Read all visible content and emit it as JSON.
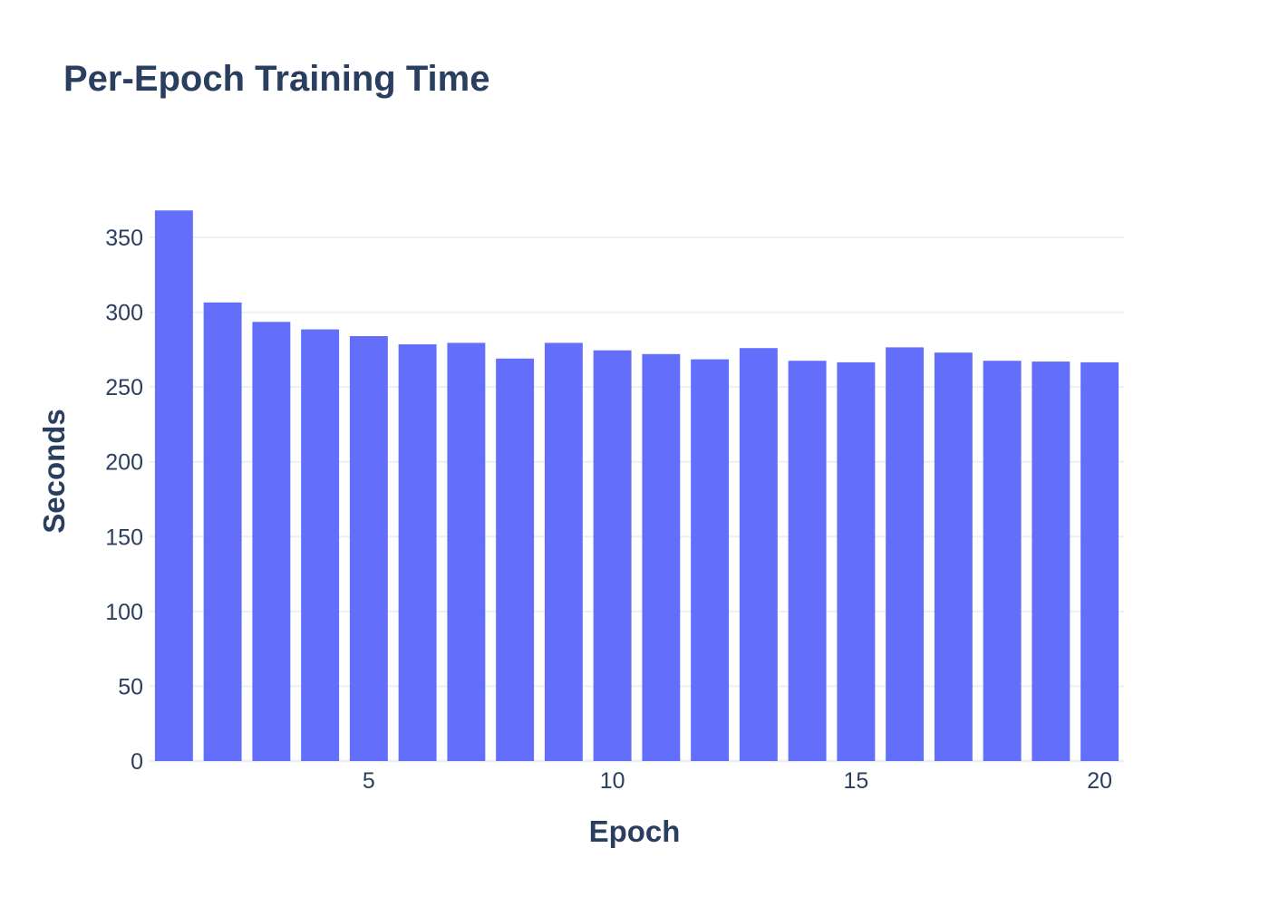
{
  "chart_data": {
    "type": "bar",
    "title": "Per-Epoch Training Time",
    "xlabel": "Epoch",
    "ylabel": "Seconds",
    "x": [
      1,
      2,
      3,
      4,
      5,
      6,
      7,
      8,
      9,
      10,
      11,
      12,
      13,
      14,
      15,
      16,
      17,
      18,
      19,
      20
    ],
    "values": [
      368,
      306.5,
      293.5,
      288.5,
      284,
      278.5,
      279.5,
      269,
      279.5,
      274.5,
      272,
      268.5,
      276,
      267.5,
      266.5,
      276.5,
      273,
      267.5,
      267,
      266.5
    ],
    "ylim": [
      0,
      370
    ],
    "xlim": [
      0.5,
      20.5
    ],
    "x_ticks": [
      5,
      10,
      15,
      20
    ],
    "y_ticks": [
      0,
      50,
      100,
      150,
      200,
      250,
      300,
      350
    ],
    "grid": true,
    "legend": "none",
    "bar_color": "#636efa",
    "text_color": "#2a3f5f",
    "grid_color": "#ebf0f8"
  }
}
